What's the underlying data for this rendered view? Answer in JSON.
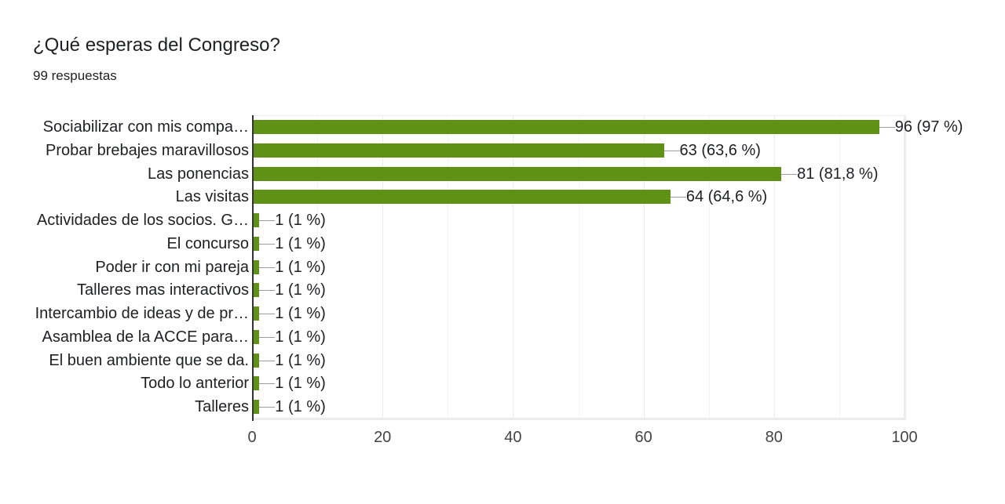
{
  "header": {
    "title": "¿Qué esperas del Congreso?",
    "subtitle": "99 respuestas"
  },
  "colors": {
    "bar": "#5f9117",
    "axis": "#333333",
    "grid": "#ececec",
    "leader": "#9e9e9e",
    "text": "#202124"
  },
  "chart_data": {
    "type": "bar",
    "orientation": "horizontal",
    "title": "¿Qué esperas del Congreso?",
    "subtitle": "99 respuestas",
    "xlabel": "",
    "ylabel": "",
    "xlim": [
      0,
      100
    ],
    "x_ticks": [
      "0",
      "20",
      "40",
      "60",
      "80",
      "100"
    ],
    "grid": true,
    "legend": null,
    "categories": [
      "Sociabilizar con mis compa…",
      "Probar brebajes maravillosos",
      "Las ponencias",
      "Las visitas",
      "Actividades de los socios. G…",
      "El concurso",
      "Poder ir con mi pareja",
      "Talleres mas interactivos",
      "Intercambio de ideas y de pr…",
      "Asamblea de la ACCE para…",
      "El buen ambiente que se da.",
      "Todo lo anterior",
      "Talleres"
    ],
    "values": [
      96,
      63,
      81,
      64,
      1,
      1,
      1,
      1,
      1,
      1,
      1,
      1,
      1
    ],
    "data_labels": [
      "96 (97 %)",
      "63 (63,6 %)",
      "81 (81,8 %)",
      "64 (64,6 %)",
      "1 (1 %)",
      "1 (1 %)",
      "1 (1 %)",
      "1 (1 %)",
      "1 (1 %)",
      "1 (1 %)",
      "1 (1 %)",
      "1 (1 %)",
      "1 (1 %)"
    ]
  }
}
